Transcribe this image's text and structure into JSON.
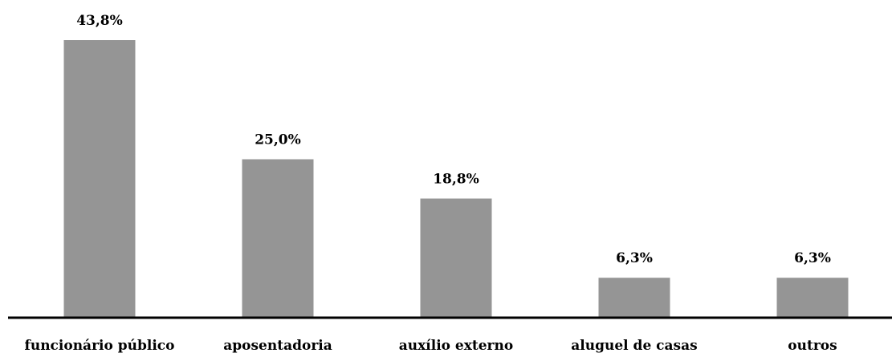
{
  "chart_data": {
    "type": "bar",
    "title": "",
    "xlabel": "",
    "ylabel": "",
    "categories": [
      "funcionário público",
      "aposentadoria",
      "auxílio externo",
      "aluguel de casas",
      "outros"
    ],
    "values": [
      43.8,
      25.0,
      18.8,
      6.3,
      6.3
    ],
    "value_labels": [
      "43,8%",
      "25,0%",
      "18,8%",
      "6,3%",
      "6,3%"
    ],
    "unit": "%",
    "ylim": [
      0,
      50
    ],
    "grid": false,
    "legend": "none",
    "colors": {
      "bar": "#959595",
      "axis": "#000000",
      "text": "#000000"
    }
  }
}
